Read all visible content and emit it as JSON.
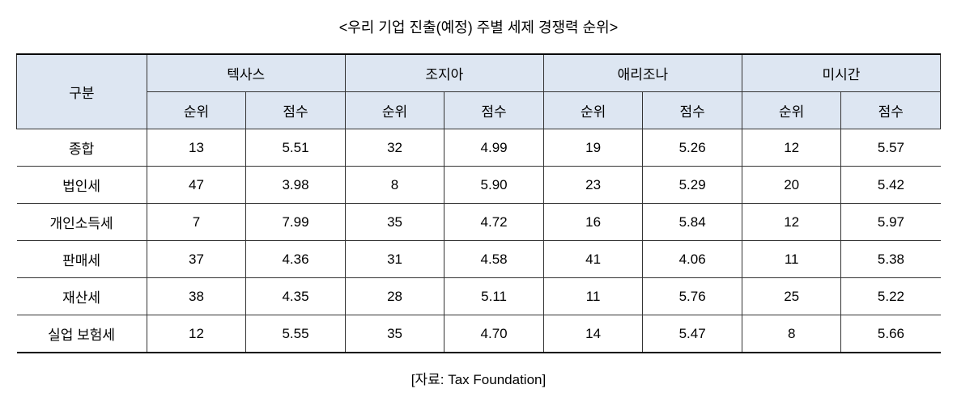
{
  "title": "<우리 기업 진출(예정) 주별 세제 경쟁력 순위>",
  "source": "[자료: Tax Foundation]",
  "table": {
    "rowHeader": "구분",
    "subHeaders": {
      "rank": "순위",
      "score": "점수"
    },
    "states": [
      "텍사스",
      "조지아",
      "애리조나",
      "미시간"
    ],
    "rowLabels": [
      "종합",
      "법인세",
      "개인소득세",
      "판매세",
      "재산세",
      "실업 보험세"
    ],
    "rows": [
      [
        {
          "rank": "13",
          "score": "5.51"
        },
        {
          "rank": "32",
          "score": "4.99"
        },
        {
          "rank": "19",
          "score": "5.26"
        },
        {
          "rank": "12",
          "score": "5.57"
        }
      ],
      [
        {
          "rank": "47",
          "score": "3.98"
        },
        {
          "rank": "8",
          "score": "5.90"
        },
        {
          "rank": "23",
          "score": "5.29"
        },
        {
          "rank": "20",
          "score": "5.42"
        }
      ],
      [
        {
          "rank": "7",
          "score": "7.99"
        },
        {
          "rank": "35",
          "score": "4.72"
        },
        {
          "rank": "16",
          "score": "5.84"
        },
        {
          "rank": "12",
          "score": "5.97"
        }
      ],
      [
        {
          "rank": "37",
          "score": "4.36"
        },
        {
          "rank": "31",
          "score": "4.58"
        },
        {
          "rank": "41",
          "score": "4.06"
        },
        {
          "rank": "11",
          "score": "5.38"
        }
      ],
      [
        {
          "rank": "38",
          "score": "4.35"
        },
        {
          "rank": "28",
          "score": "5.11"
        },
        {
          "rank": "11",
          "score": "5.76"
        },
        {
          "rank": "25",
          "score": "5.22"
        }
      ],
      [
        {
          "rank": "12",
          "score": "5.55"
        },
        {
          "rank": "35",
          "score": "4.70"
        },
        {
          "rank": "14",
          "score": "5.47"
        },
        {
          "rank": "8",
          "score": "5.66"
        }
      ]
    ]
  },
  "style": {
    "headerBg": "#dde6f2",
    "borderColor": "#333333",
    "outerBorderColor": "#000000",
    "fontSize": 17,
    "titleFontSize": 18
  }
}
